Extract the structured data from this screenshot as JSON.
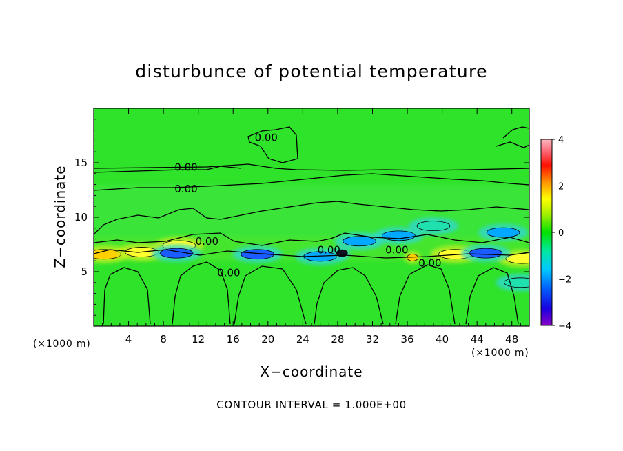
{
  "chart_data": {
    "type": "heatmap",
    "title": "disturbunce of potential temperature",
    "xlabel": "X−coordinate",
    "ylabel": "Z−coordinate",
    "x_unit_label": "(×1000 m)",
    "y_unit_label": "(×1000 m)",
    "xlim": [
      0,
      50
    ],
    "ylim": [
      0,
      20
    ],
    "x_ticks": [
      4,
      8,
      12,
      16,
      20,
      24,
      28,
      32,
      36,
      40,
      44,
      48
    ],
    "y_ticks": [
      5,
      10,
      15
    ],
    "z_range": [
      -4,
      4
    ],
    "colorbar_ticks": [
      4,
      2,
      0,
      -2,
      -4
    ],
    "contour_interval_text": "CONTOUR INTERVAL = 1.000E+00",
    "contour_labels": [
      {
        "text": "0.00",
        "x": 19.8,
        "z": 17.3
      },
      {
        "text": "0.00",
        "x": 10.6,
        "z": 14.6
      },
      {
        "text": "0.00",
        "x": 10.6,
        "z": 12.6
      },
      {
        "text": "0.00",
        "x": 13.0,
        "z": 7.8
      },
      {
        "text": "0.00",
        "x": 15.5,
        "z": 4.9
      },
      {
        "text": "0.00",
        "x": 27.0,
        "z": 7.0
      },
      {
        "text": "0.00",
        "x": 34.8,
        "z": 7.0
      },
      {
        "text": "0.00",
        "x": 38.6,
        "z": 5.8
      }
    ],
    "features": [
      {
        "kind": "warm",
        "x": 1.2,
        "z": 6.6,
        "amp": 2.4
      },
      {
        "kind": "warm",
        "x": 5.5,
        "z": 6.8,
        "amp": 1.6
      },
      {
        "kind": "warm",
        "x": 36.6,
        "z": 6.3,
        "amp": 2.6
      },
      {
        "kind": "warm",
        "x": 41.5,
        "z": 6.6,
        "amp": 1.4
      },
      {
        "kind": "warm",
        "x": 49.2,
        "z": 6.2,
        "amp": 1.6
      },
      {
        "kind": "warm",
        "x": 9.8,
        "z": 7.4,
        "amp": 1.5
      },
      {
        "kind": "cold",
        "x": 9.5,
        "z": 6.7,
        "amp": -2.0
      },
      {
        "kind": "cold",
        "x": 18.8,
        "z": 6.6,
        "amp": -1.8
      },
      {
        "kind": "cold",
        "x": 26.0,
        "z": 6.4,
        "amp": -1.6
      },
      {
        "kind": "cold",
        "x": 30.5,
        "z": 7.8,
        "amp": -1.4
      },
      {
        "kind": "cold",
        "x": 35.0,
        "z": 8.3,
        "amp": -1.5
      },
      {
        "kind": "cold",
        "x": 45.0,
        "z": 6.7,
        "amp": -1.8
      },
      {
        "kind": "cold",
        "x": 47.0,
        "z": 8.6,
        "amp": -1.2
      },
      {
        "kind": "cold",
        "x": 39.0,
        "z": 9.2,
        "amp": -1.0
      },
      {
        "kind": "cold",
        "x": 49.0,
        "z": 4.0,
        "amp": -0.9
      },
      {
        "kind": "cold",
        "x": 28.5,
        "z": 6.7,
        "amp": -3.2
      }
    ]
  }
}
